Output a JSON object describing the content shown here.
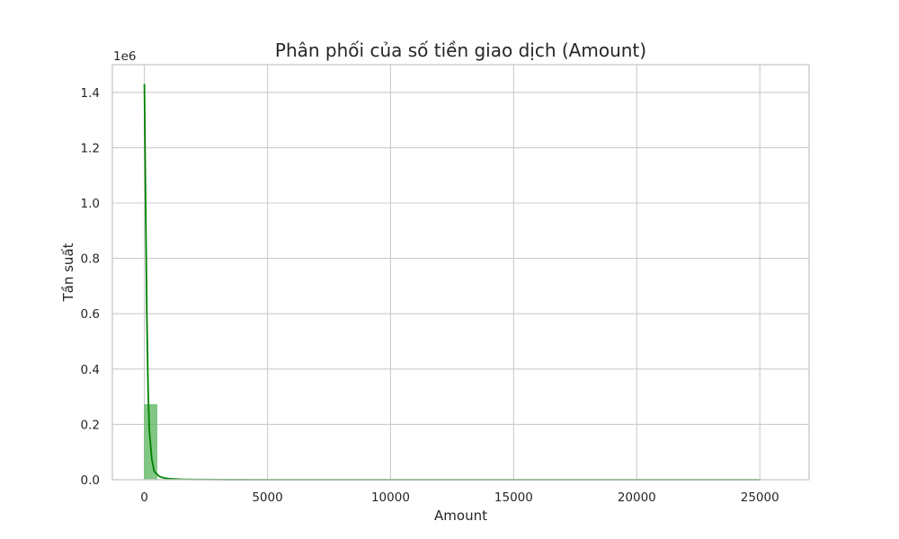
{
  "chart_data": {
    "type": "bar",
    "title": "Phân phối của số tiền giao dịch (Amount)",
    "xlabel": "Amount",
    "ylabel": "Tần suất",
    "y_offset_text": "1e6",
    "y_scale": 1000000,
    "xlim": [
      -1300,
      27000
    ],
    "ylim": [
      0,
      1500000
    ],
    "xticks": [
      0,
      5000,
      10000,
      15000,
      20000,
      25000
    ],
    "xtick_labels": [
      "0",
      "5000",
      "10000",
      "15000",
      "20000",
      "25000"
    ],
    "yticks": [
      0,
      200000,
      400000,
      600000,
      800000,
      1000000,
      1200000,
      1400000
    ],
    "ytick_labels": [
      "0.0",
      "0.2",
      "0.4",
      "0.6",
      "0.8",
      "1.0",
      "1.2",
      "1.4"
    ],
    "grid": true,
    "histogram": {
      "bin_width": 513,
      "bins": [
        {
          "start": 0,
          "count": 272000
        },
        {
          "start": 513,
          "count": 1500
        },
        {
          "start": 1026,
          "count": 500
        },
        {
          "start": 1539,
          "count": 250
        },
        {
          "start": 2052,
          "count": 150
        }
      ],
      "color": "#4caf50"
    },
    "kde": {
      "x": [
        0,
        50,
        100,
        150,
        200,
        300,
        400,
        600,
        800,
        1000,
        1500,
        2000,
        3000,
        5000,
        10000,
        15000,
        20000,
        25000
      ],
      "y": [
        1430000,
        1000000,
        600000,
        330000,
        180000,
        75000,
        30000,
        12000,
        6000,
        3500,
        1500,
        800,
        300,
        100,
        20,
        5,
        2,
        0
      ],
      "color": "#008000"
    }
  }
}
